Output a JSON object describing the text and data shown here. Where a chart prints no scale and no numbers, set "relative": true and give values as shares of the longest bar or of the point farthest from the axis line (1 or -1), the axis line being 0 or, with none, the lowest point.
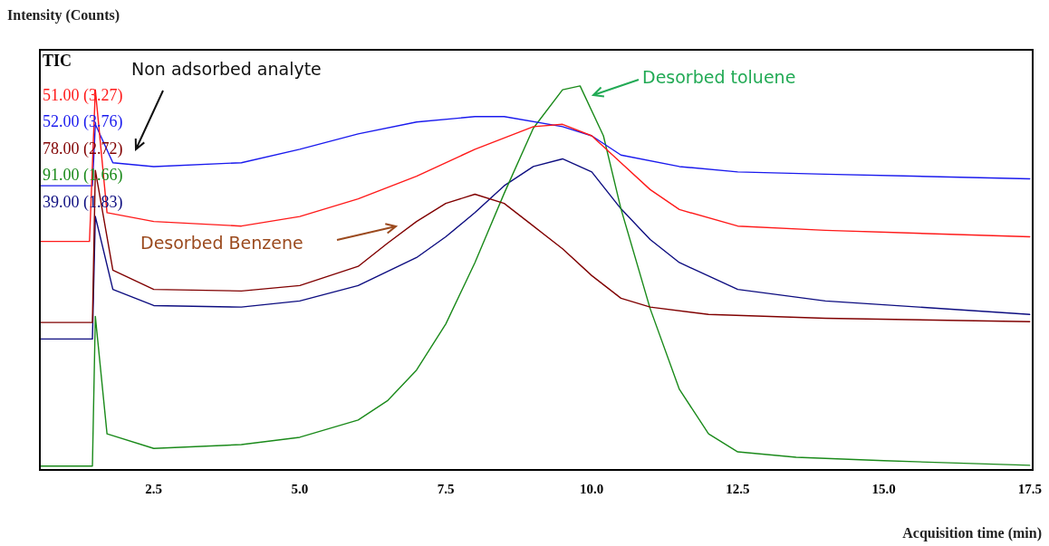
{
  "chart_data": {
    "type": "line",
    "xlabel": "Acquisition time (min)",
    "ylabel": "Intensity (Counts)",
    "legend_title": "TIC",
    "legend": "top left",
    "relative": true,
    "marker": "none",
    "grid": false,
    "xlim": [
      0.55,
      17.55
    ],
    "xticks": [
      {
        "value": 2.5,
        "label": "2.5"
      },
      {
        "value": 5,
        "label": "5.0"
      },
      {
        "value": 7.5,
        "label": "7.5"
      },
      {
        "value": 10,
        "label": "10.0"
      },
      {
        "value": 12.5,
        "label": "12.5"
      },
      {
        "value": 15,
        "label": "15.0"
      },
      {
        "value": 17.5,
        "label": "17.5"
      }
    ],
    "series": [
      {
        "name": "51.00 (3.27)",
        "color": "#ff1a1a",
        "x": [
          0.55,
          1.4,
          1.5,
          1.7,
          2.5,
          4,
          5,
          6,
          7,
          8,
          9,
          9.5,
          10,
          10.5,
          11,
          11.5,
          12.5,
          14,
          17.5
        ],
        "values": [
          0.595,
          0.595,
          0.99,
          0.67,
          0.647,
          0.635,
          0.66,
          0.706,
          0.765,
          0.835,
          0.894,
          0.9,
          0.87,
          0.8,
          0.73,
          0.678,
          0.635,
          0.624,
          0.607
        ]
      },
      {
        "name": "52.00 (3.76)",
        "color": "#1a1aee",
        "x": [
          0.55,
          1.45,
          1.5,
          1.8,
          2.5,
          4,
          5,
          6,
          7,
          8,
          8.5,
          9.5,
          10,
          10.5,
          11.5,
          12.5,
          14,
          15.5,
          17.5
        ],
        "values": [
          0.74,
          0.74,
          0.9,
          0.8,
          0.79,
          0.8,
          0.835,
          0.875,
          0.906,
          0.92,
          0.92,
          0.894,
          0.87,
          0.82,
          0.79,
          0.776,
          0.77,
          0.765,
          0.758
        ]
      },
      {
        "name": "78.00 (2.72)",
        "color": "#800000",
        "x": [
          0.55,
          1.45,
          1.5,
          1.8,
          2.5,
          4,
          5,
          6,
          6.5,
          7,
          7.5,
          8,
          8.5,
          9,
          9.5,
          10,
          10.5,
          11,
          12,
          14,
          17.5
        ],
        "values": [
          0.384,
          0.384,
          0.78,
          0.52,
          0.47,
          0.466,
          0.48,
          0.53,
          0.59,
          0.647,
          0.694,
          0.718,
          0.694,
          0.635,
          0.576,
          0.506,
          0.447,
          0.424,
          0.405,
          0.395,
          0.386
        ]
      },
      {
        "name": "91.00 (1.66)",
        "color": "#1a8a1a",
        "x": [
          0.55,
          1.45,
          1.5,
          1.7,
          2.5,
          4,
          5,
          6,
          6.5,
          7,
          7.5,
          8,
          8.5,
          9,
          9.5,
          9.8,
          10.2,
          10.5,
          11,
          11.5,
          12,
          12.5,
          13.5,
          15,
          17.5
        ],
        "values": [
          0.01,
          0.01,
          0.4,
          0.094,
          0.056,
          0.066,
          0.085,
          0.13,
          0.18,
          0.26,
          0.38,
          0.54,
          0.72,
          0.89,
          0.99,
          1,
          0.87,
          0.68,
          0.42,
          0.21,
          0.094,
          0.047,
          0.033,
          0.024,
          0.012
        ]
      },
      {
        "name": "39.00 (1.83)",
        "color": "#0d0d80",
        "x": [
          0.55,
          1.45,
          1.5,
          1.8,
          2.5,
          4,
          5,
          6,
          7,
          7.5,
          8,
          8.5,
          9,
          9.5,
          10,
          10.5,
          11,
          11.5,
          12.5,
          14,
          17.5
        ],
        "values": [
          0.341,
          0.341,
          0.66,
          0.47,
          0.428,
          0.424,
          0.44,
          0.48,
          0.553,
          0.607,
          0.67,
          0.74,
          0.79,
          0.81,
          0.776,
          0.68,
          0.6,
          0.54,
          0.47,
          0.44,
          0.405
        ]
      }
    ],
    "annotations": [
      "Non adsorbed analyte",
      "Desorbed toluene",
      "Desorbed Benzene"
    ]
  }
}
